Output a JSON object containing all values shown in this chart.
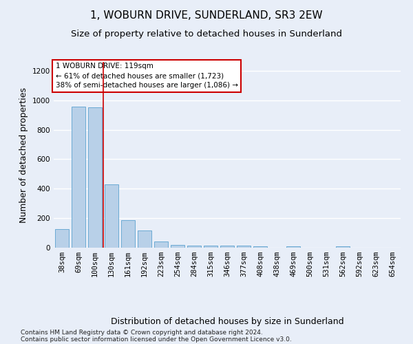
{
  "title": "1, WOBURN DRIVE, SUNDERLAND, SR3 2EW",
  "subtitle": "Size of property relative to detached houses in Sunderland",
  "xlabel": "Distribution of detached houses by size in Sunderland",
  "ylabel": "Number of detached properties",
  "footnote1": "Contains HM Land Registry data © Crown copyright and database right 2024.",
  "footnote2": "Contains public sector information licensed under the Open Government Licence v3.0.",
  "categories": [
    "38sqm",
    "69sqm",
    "100sqm",
    "130sqm",
    "161sqm",
    "192sqm",
    "223sqm",
    "254sqm",
    "284sqm",
    "315sqm",
    "346sqm",
    "377sqm",
    "408sqm",
    "438sqm",
    "469sqm",
    "500sqm",
    "531sqm",
    "562sqm",
    "592sqm",
    "623sqm",
    "654sqm"
  ],
  "values": [
    125,
    955,
    950,
    430,
    185,
    115,
    43,
    20,
    12,
    12,
    12,
    12,
    8,
    0,
    10,
    0,
    0,
    10,
    0,
    0,
    0
  ],
  "bar_color": "#b8d0e8",
  "bar_edge_color": "#6aaad4",
  "vline_x": 2.5,
  "vline_color": "#cc0000",
  "annotation_text": "1 WOBURN DRIVE: 119sqm\n← 61% of detached houses are smaller (1,723)\n38% of semi-detached houses are larger (1,086) →",
  "annotation_box_color": "#ffffff",
  "annotation_box_edge": "#cc0000",
  "ylim": [
    0,
    1260
  ],
  "yticks": [
    0,
    200,
    400,
    600,
    800,
    1000,
    1200
  ],
  "bg_color": "#e8eef8",
  "plot_bg_color": "#e8eef8",
  "grid_color": "#ffffff",
  "title_fontsize": 11,
  "subtitle_fontsize": 9.5,
  "axis_label_fontsize": 9,
  "tick_fontsize": 7.5,
  "footnote_fontsize": 6.5
}
